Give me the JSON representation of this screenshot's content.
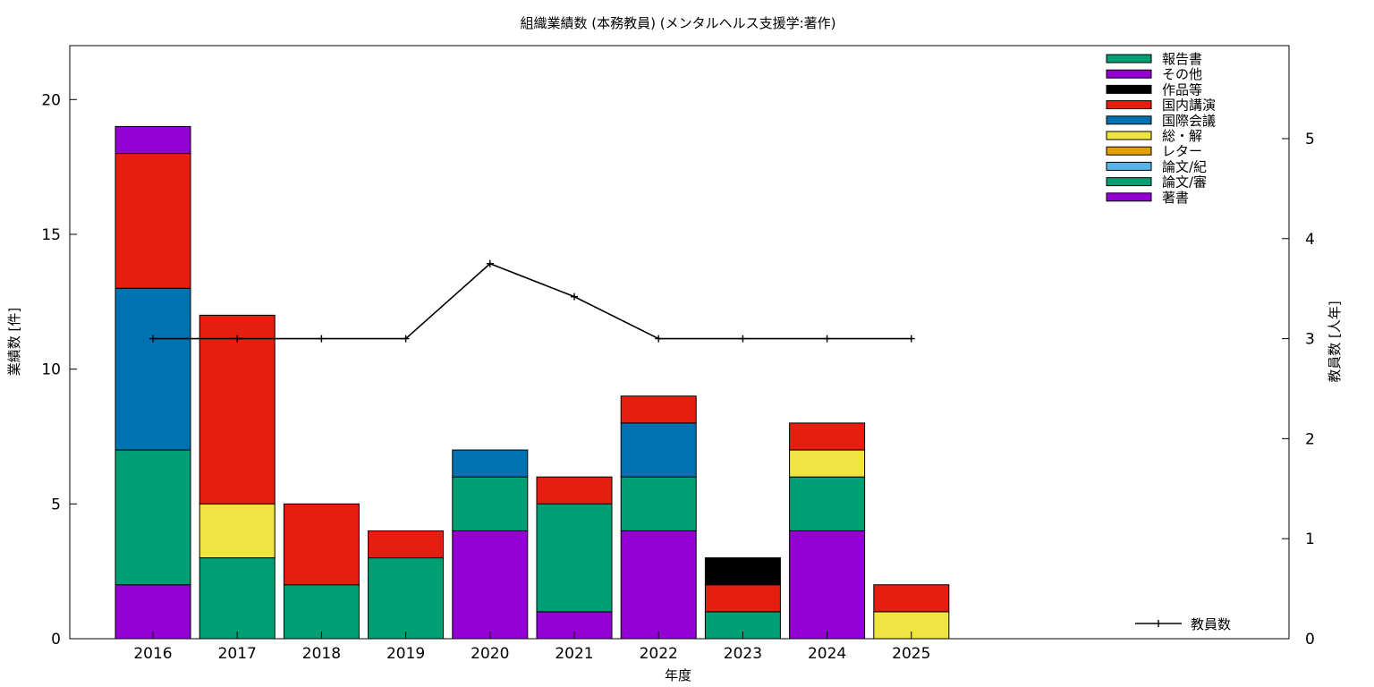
{
  "chart_data": {
    "type": "bar",
    "stacked": true,
    "title": "組織業績数 (本務教員) (メンタルヘルス支援学:著作)",
    "xlabel": "年度",
    "ylabel": "業績数 [件]",
    "y2label": "教員数 [人年]",
    "categories": [
      "2016",
      "2017",
      "2018",
      "2019",
      "2020",
      "2021",
      "2022",
      "2023",
      "2024",
      "2025"
    ],
    "ylim": [
      0,
      22
    ],
    "yticks": [
      "0",
      "5",
      "10",
      "15",
      "20"
    ],
    "y2lim": [
      0,
      5.93
    ],
    "y2ticks": [
      "0",
      "1",
      "2",
      "3",
      "4",
      "5"
    ],
    "grid": false,
    "legend_position": "top-right",
    "series": [
      {
        "name": "著書",
        "color": "#9400d3",
        "values": [
          2,
          0,
          0,
          0,
          4,
          1,
          4,
          0,
          4,
          0
        ]
      },
      {
        "name": "論文/審",
        "color": "#009e73",
        "values": [
          5,
          3,
          2,
          3,
          2,
          4,
          2,
          1,
          2,
          0
        ]
      },
      {
        "name": "論文/紀",
        "color": "#56b4e9",
        "values": [
          0,
          0,
          0,
          0,
          0,
          0,
          0,
          0,
          0,
          0
        ]
      },
      {
        "name": "レター",
        "color": "#e69f00",
        "values": [
          0,
          0,
          0,
          0,
          0,
          0,
          0,
          0,
          0,
          0
        ]
      },
      {
        "name": "総・解",
        "color": "#f0e442",
        "values": [
          0,
          2,
          0,
          0,
          0,
          0,
          0,
          0,
          1,
          1
        ]
      },
      {
        "name": "国際会議",
        "color": "#0072b2",
        "values": [
          6,
          0,
          0,
          0,
          1,
          0,
          2,
          0,
          0,
          0
        ]
      },
      {
        "name": "国内講演",
        "color": "#e51e10",
        "values": [
          5,
          7,
          3,
          1,
          0,
          1,
          1,
          1,
          1,
          1
        ]
      },
      {
        "name": "作品等",
        "color": "#000000",
        "values": [
          0,
          0,
          0,
          0,
          0,
          0,
          0,
          1,
          0,
          0
        ]
      },
      {
        "name": "その他",
        "color": "#9400d3",
        "values": [
          1,
          0,
          0,
          0,
          0,
          0,
          0,
          0,
          0,
          0
        ]
      },
      {
        "name": "報告書",
        "color": "#009e73",
        "values": [
          0,
          0,
          0,
          0,
          0,
          0,
          0,
          0,
          0,
          0
        ]
      }
    ],
    "legend_order": [
      "報告書",
      "その他",
      "作品等",
      "国内講演",
      "国際会議",
      "総・解",
      "レター",
      "論文/紀",
      "論文/審",
      "著書"
    ],
    "line_series": {
      "name": "教員数",
      "axis": "y2",
      "color": "#000000",
      "values": [
        3,
        3,
        3,
        3,
        3.75,
        3.42,
        3,
        3,
        3,
        3
      ]
    }
  }
}
